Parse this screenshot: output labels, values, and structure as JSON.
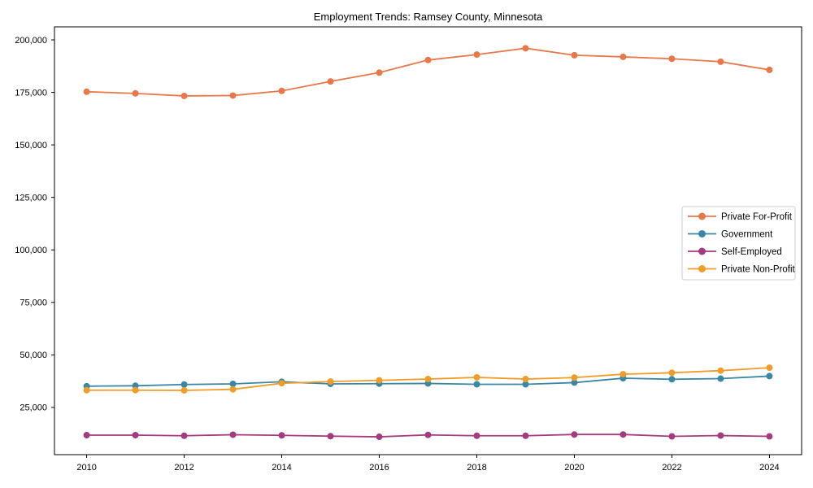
{
  "figure": {
    "title": "Employment Trends: Ramsey County, Minnesota"
  },
  "chart_data": {
    "type": "line",
    "title": "Employment Trends: Ramsey County, Minnesota",
    "xlabel": "",
    "ylabel": "",
    "grid": false,
    "x": [
      2010,
      2011,
      2012,
      2013,
      2014,
      2015,
      2016,
      2017,
      2018,
      2019,
      2020,
      2021,
      2022,
      2023,
      2024
    ],
    "series": [
      {
        "name": "Private For-Profit",
        "color": "#e8784a",
        "marker": "circle",
        "values": [
          175300,
          174500,
          173300,
          173500,
          175700,
          180200,
          184400,
          190400,
          193000,
          196000,
          192700,
          191900,
          191000,
          189600,
          185700
        ]
      },
      {
        "name": "Government",
        "color": "#3a87a5",
        "marker": "circle",
        "values": [
          35100,
          35300,
          35900,
          36200,
          37200,
          36200,
          36300,
          36400,
          36000,
          36000,
          36800,
          38900,
          38400,
          38700,
          39900
        ]
      },
      {
        "name": "Self-Employed",
        "color": "#a53a7f",
        "marker": "circle",
        "values": [
          11800,
          11800,
          11500,
          12000,
          11700,
          11300,
          11000,
          11900,
          11500,
          11500,
          12100,
          12100,
          11200,
          11600,
          11200
        ]
      },
      {
        "name": "Private Non-Profit",
        "color": "#f09c28",
        "marker": "circle",
        "values": [
          33200,
          33200,
          33100,
          33600,
          36500,
          37300,
          37900,
          38500,
          39300,
          38500,
          39200,
          40800,
          41500,
          42500,
          43900
        ]
      }
    ],
    "x_ticks": [
      2010,
      2012,
      2014,
      2016,
      2018,
      2020,
      2022,
      2024
    ],
    "x_tick_labels": [
      "2010",
      "2012",
      "2014",
      "2016",
      "2018",
      "2020",
      "2022",
      "2024"
    ],
    "y_ticks": [
      25000,
      50000,
      75000,
      100000,
      125000,
      150000,
      175000,
      200000
    ],
    "y_tick_labels": [
      "25,000",
      "50,000",
      "75,000",
      "100,000",
      "125,000",
      "150,000",
      "175,000",
      "200,000"
    ],
    "xlim": [
      2009.34,
      2024.66
    ],
    "ylim": [
      2500,
      206200
    ],
    "legend": {
      "position": "center-right",
      "entries": [
        "Private For-Profit",
        "Government",
        "Self-Employed",
        "Private Non-Profit"
      ]
    },
    "axis_color": "#000000",
    "background_color": "#ffffff"
  }
}
